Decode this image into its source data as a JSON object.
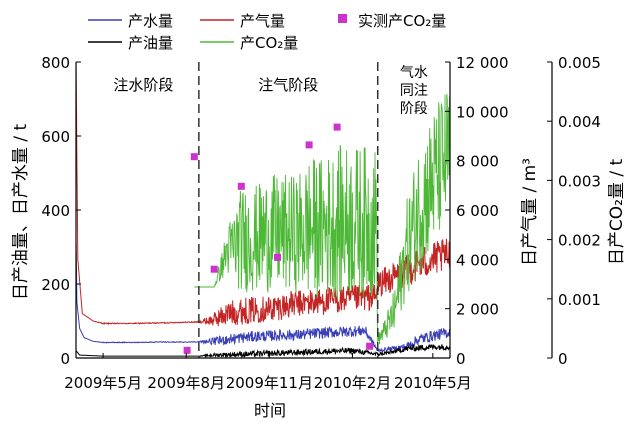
{
  "chart_data": {
    "type": "line",
    "legend": {
      "position": "top",
      "items": [
        {
          "key": "water",
          "label": "产水量",
          "marker": "line",
          "color": "#3a3fb5"
        },
        {
          "key": "gas",
          "label": "产气量",
          "marker": "line",
          "color": "#c42424"
        },
        {
          "key": "measured",
          "label": "实测产CO₂量",
          "marker": "square",
          "color": "#cc33cc"
        },
        {
          "key": "oil",
          "label": "产油量",
          "marker": "line",
          "color": "#000000"
        },
        {
          "key": "co2",
          "label": "产CO₂量",
          "marker": "line",
          "color": "#4db836"
        }
      ]
    },
    "x_axis": {
      "label": "时间",
      "ticks": [
        "2009年5月",
        "2009年8月",
        "2009年11月",
        "2010年2月",
        "2010年5月"
      ],
      "tick_dates": [
        "2009-05-01",
        "2009-08-01",
        "2009-11-01",
        "2010-02-01",
        "2010-05-01"
      ],
      "range": [
        "2009-04-01",
        "2010-05-20"
      ]
    },
    "y_axes": [
      {
        "id": "left",
        "label": "日产油量、日产水量 / t",
        "ticks": [
          "0",
          "200",
          "400",
          "600",
          "800"
        ],
        "ylim": [
          0,
          800
        ]
      },
      {
        "id": "right1",
        "label": "日产气量 / m³",
        "ticks": [
          "0",
          "2 000",
          "4 000",
          "6 000",
          "8 000",
          "10 000",
          "12 000"
        ],
        "ylim": [
          0,
          12000
        ]
      },
      {
        "id": "right2",
        "label": "日产CO₂量 / t",
        "ticks": [
          "0",
          "0.001",
          "0.002",
          "0.003",
          "0.004",
          "0.005"
        ],
        "ylim": [
          0,
          0.005
        ]
      }
    ],
    "phases": [
      {
        "label": "注水阶段",
        "start": "2009-04-01",
        "end": "2009-08-15"
      },
      {
        "label": "注气阶段",
        "start": "2009-08-15",
        "end": "2010-03-01"
      },
      {
        "label": "气水同注阶段",
        "lines": [
          "气水",
          "同注",
          "阶段"
        ],
        "start": "2010-03-01",
        "end": "2010-05-20"
      }
    ],
    "series": [
      {
        "key": "water",
        "name": "产水量",
        "axis": "left",
        "color": "#3a3fb5",
        "x": [
          "2009-04-01",
          "2009-04-02",
          "2009-04-05",
          "2009-04-10",
          "2009-04-20",
          "2009-05-01",
          "2009-06-01",
          "2009-07-01",
          "2009-08-01",
          "2009-08-15",
          "2009-09-01",
          "2009-09-15",
          "2009-10-01",
          "2009-10-15",
          "2009-11-01",
          "2009-11-15",
          "2009-12-01",
          "2009-12-15",
          "2010-01-01",
          "2010-01-15",
          "2010-02-01",
          "2010-02-15",
          "2010-03-01",
          "2010-03-15",
          "2010-04-01",
          "2010-04-15",
          "2010-05-01",
          "2010-05-20"
        ],
        "y": [
          320,
          150,
          80,
          55,
          45,
          42,
          42,
          43,
          43,
          44,
          45,
          50,
          55,
          58,
          60,
          62,
          62,
          65,
          68,
          70,
          72,
          74,
          20,
          25,
          30,
          50,
          60,
          70
        ],
        "noise": [
          0,
          0,
          0,
          0,
          0,
          1,
          1,
          1,
          1,
          1,
          10,
          15,
          15,
          15,
          15,
          15,
          15,
          15,
          15,
          15,
          15,
          15,
          5,
          5,
          10,
          15,
          15,
          15
        ]
      },
      {
        "key": "gas",
        "name": "产气量",
        "axis": "right1",
        "color": "#c42424",
        "x": [
          "2009-04-01",
          "2009-04-03",
          "2009-04-08",
          "2009-04-20",
          "2009-05-01",
          "2009-06-01",
          "2009-07-01",
          "2009-08-01",
          "2009-08-15",
          "2009-09-01",
          "2009-09-15",
          "2009-10-01",
          "2009-10-15",
          "2009-11-01",
          "2009-11-15",
          "2009-12-01",
          "2009-12-15",
          "2010-01-01",
          "2010-01-15",
          "2010-02-01",
          "2010-02-15",
          "2010-02-28",
          "2010-03-01",
          "2010-03-15",
          "2010-04-01",
          "2010-04-15",
          "2010-05-01",
          "2010-05-20"
        ],
        "y": [
          12000,
          4000,
          1800,
          1500,
          1400,
          1400,
          1420,
          1450,
          1460,
          1550,
          1800,
          1900,
          1950,
          2000,
          2100,
          2200,
          2250,
          2300,
          2350,
          2400,
          2450,
          2500,
          3000,
          3200,
          3500,
          3800,
          4000,
          4200
        ],
        "noise": [
          0,
          0,
          0,
          0,
          20,
          20,
          20,
          20,
          20,
          300,
          500,
          550,
          550,
          550,
          550,
          550,
          550,
          550,
          550,
          550,
          550,
          550,
          550,
          600,
          650,
          700,
          700,
          700
        ]
      },
      {
        "key": "oil",
        "name": "产油量",
        "axis": "left",
        "color": "#000000",
        "x": [
          "2009-04-01",
          "2009-04-05",
          "2009-05-01",
          "2009-06-01",
          "2009-07-01",
          "2009-08-01",
          "2009-08-15",
          "2009-09-01",
          "2009-10-01",
          "2009-11-01",
          "2009-12-01",
          "2010-01-01",
          "2010-02-01",
          "2010-03-01",
          "2010-03-15",
          "2010-04-01",
          "2010-05-01",
          "2010-05-20"
        ],
        "y": [
          20,
          8,
          5,
          5,
          5,
          5,
          5,
          8,
          10,
          12,
          15,
          18,
          20,
          10,
          15,
          25,
          30,
          30
        ],
        "noise": [
          0,
          0,
          0,
          0,
          0,
          0,
          0,
          5,
          8,
          8,
          8,
          8,
          8,
          5,
          5,
          8,
          8,
          8
        ]
      },
      {
        "key": "co2",
        "name": "产CO₂量",
        "axis": "right2",
        "color": "#4db836",
        "x": [
          "2009-08-10",
          "2009-08-15",
          "2009-08-25",
          "2009-09-01",
          "2009-09-15",
          "2009-10-01",
          "2009-10-15",
          "2009-11-01",
          "2009-11-15",
          "2009-12-01",
          "2009-12-15",
          "2010-01-01",
          "2010-01-15",
          "2010-02-01",
          "2010-02-15",
          "2010-02-28",
          "2010-03-01",
          "2010-03-10",
          "2010-03-20",
          "2010-04-01",
          "2010-04-15",
          "2010-05-01",
          "2010-05-20"
        ],
        "y": [
          0.0012,
          0.0012,
          0.0012,
          0.0012,
          0.0018,
          0.002,
          0.002,
          0.0021,
          0.0021,
          0.0021,
          0.0022,
          0.0022,
          0.0023,
          0.0023,
          0.0023,
          0.0023,
          0.0003,
          0.0005,
          0.0008,
          0.0018,
          0.0025,
          0.003,
          0.0035
        ],
        "noise": [
          0,
          0,
          0,
          0,
          0.0004,
          0.0009,
          0.0009,
          0.001,
          0.001,
          0.001,
          0.0012,
          0.0012,
          0.0013,
          0.0013,
          0.0013,
          0.0013,
          0.0001,
          0.0002,
          0.0004,
          0.0008,
          0.0011,
          0.0012,
          0.0012
        ]
      }
    ],
    "measured_co2": {
      "name": "实测产CO₂量",
      "axis": "right2",
      "color": "#cc33cc",
      "x": [
        "2009-08-02",
        "2009-08-10",
        "2009-09-01",
        "2009-10-01",
        "2009-11-10",
        "2009-12-15",
        "2010-01-15",
        "2010-02-20"
      ],
      "y": [
        0.00013,
        0.0034,
        0.0015,
        0.0029,
        0.0017,
        0.0036,
        0.0039,
        0.0002
      ]
    }
  }
}
